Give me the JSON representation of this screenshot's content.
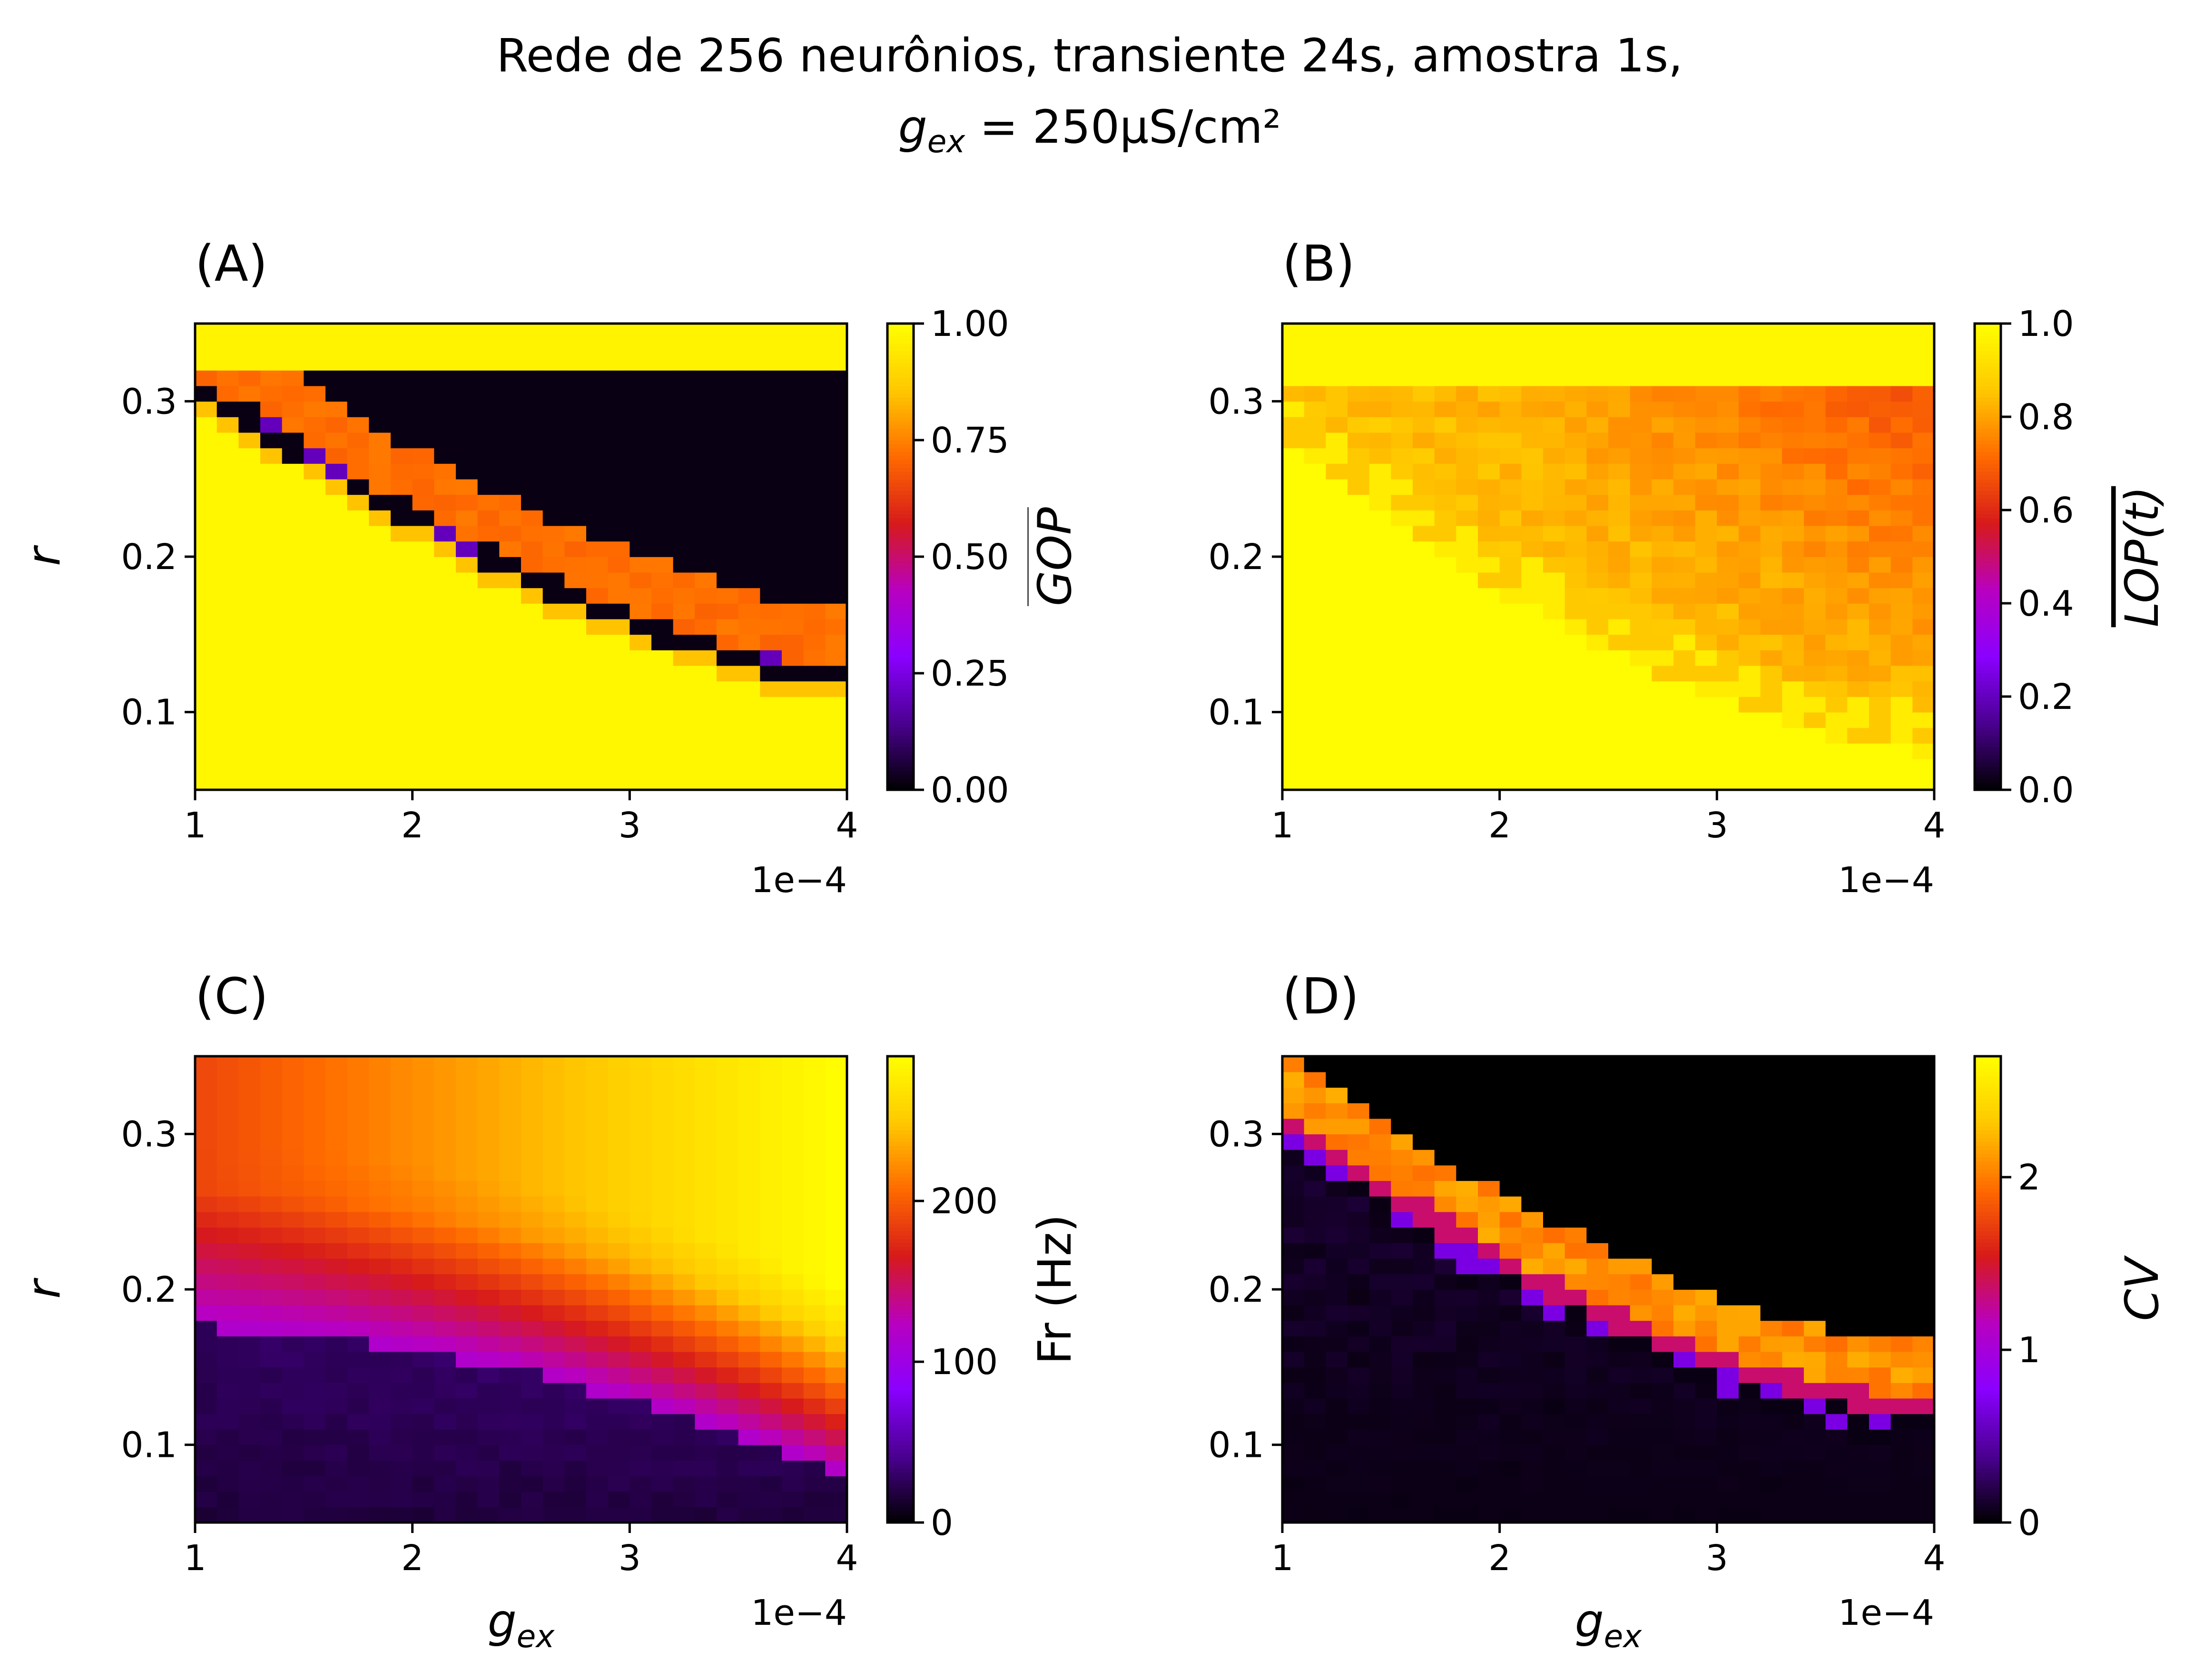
{
  "figure": {
    "title_line1": "Rede de 256 neurônios, transiente 24s, amostra 1s,",
    "title_line2_var": "g",
    "title_line2_sub": "ex",
    "title_line2_rest": " = 250μS/cm²"
  },
  "colormap": {
    "name": "gnuplot",
    "stops": [
      "#000000",
      "#4a0090",
      "#8a00ff",
      "#b800c0",
      "#d71a1a",
      "#ff6a00",
      "#ffc800",
      "#ffff00"
    ]
  },
  "chart_data": [
    {
      "type": "heatmap",
      "panel": "(A)",
      "xlabel": "",
      "ylabel": "r",
      "x_range": [
        1,
        4
      ],
      "x_ticks": [
        "1",
        "2",
        "3",
        "4"
      ],
      "x_offset_text": "1e−4",
      "y_range": [
        0.05,
        0.35
      ],
      "y_ticks": [
        "0.1",
        "0.2",
        "0.3"
      ],
      "colorbar_label": "GOP",
      "colorbar_overline": true,
      "colorbar_range": [
        0,
        1
      ],
      "colorbar_ticks": [
        "0.00",
        "0.25",
        "0.50",
        "0.75",
        "1.00"
      ],
      "grid": [
        30,
        30
      ],
      "regime": "A"
    },
    {
      "type": "heatmap",
      "panel": "(B)",
      "xlabel": "",
      "ylabel": "",
      "x_range": [
        1,
        4
      ],
      "x_ticks": [
        "1",
        "2",
        "3",
        "4"
      ],
      "x_offset_text": "1e−4",
      "y_range": [
        0.05,
        0.35
      ],
      "y_ticks": [
        "0.1",
        "0.2",
        "0.3"
      ],
      "colorbar_label": "LOP(t)",
      "colorbar_overline": true,
      "colorbar_range": [
        0,
        1
      ],
      "colorbar_ticks": [
        "0.0",
        "0.2",
        "0.4",
        "0.6",
        "0.8",
        "1.0"
      ],
      "grid": [
        30,
        30
      ],
      "regime": "B"
    },
    {
      "type": "heatmap",
      "panel": "(C)",
      "xlabel": "g",
      "xlabel_sub": "ex",
      "ylabel": "r",
      "x_range": [
        1,
        4
      ],
      "x_ticks": [
        "1",
        "2",
        "3",
        "4"
      ],
      "x_offset_text": "1e−4",
      "y_range": [
        0.05,
        0.35
      ],
      "y_ticks": [
        "0.1",
        "0.2",
        "0.3"
      ],
      "colorbar_label": "Fr (Hz)",
      "colorbar_overline": false,
      "colorbar_range": [
        0,
        290
      ],
      "colorbar_ticks": [
        "0",
        "100",
        "200"
      ],
      "grid": [
        30,
        30
      ],
      "regime": "C"
    },
    {
      "type": "heatmap",
      "panel": "(D)",
      "xlabel": "g",
      "xlabel_sub": "ex",
      "ylabel": "",
      "x_range": [
        1,
        4
      ],
      "x_ticks": [
        "1",
        "2",
        "3",
        "4"
      ],
      "x_offset_text": "1e−4",
      "y_range": [
        0.05,
        0.35
      ],
      "y_ticks": [
        "0.1",
        "0.2",
        "0.3"
      ],
      "colorbar_label": "CV",
      "colorbar_overline": false,
      "colorbar_range": [
        0,
        2.7
      ],
      "colorbar_ticks": [
        "0",
        "1",
        "2"
      ],
      "grid": [
        30,
        30
      ],
      "regime": "D"
    }
  ]
}
